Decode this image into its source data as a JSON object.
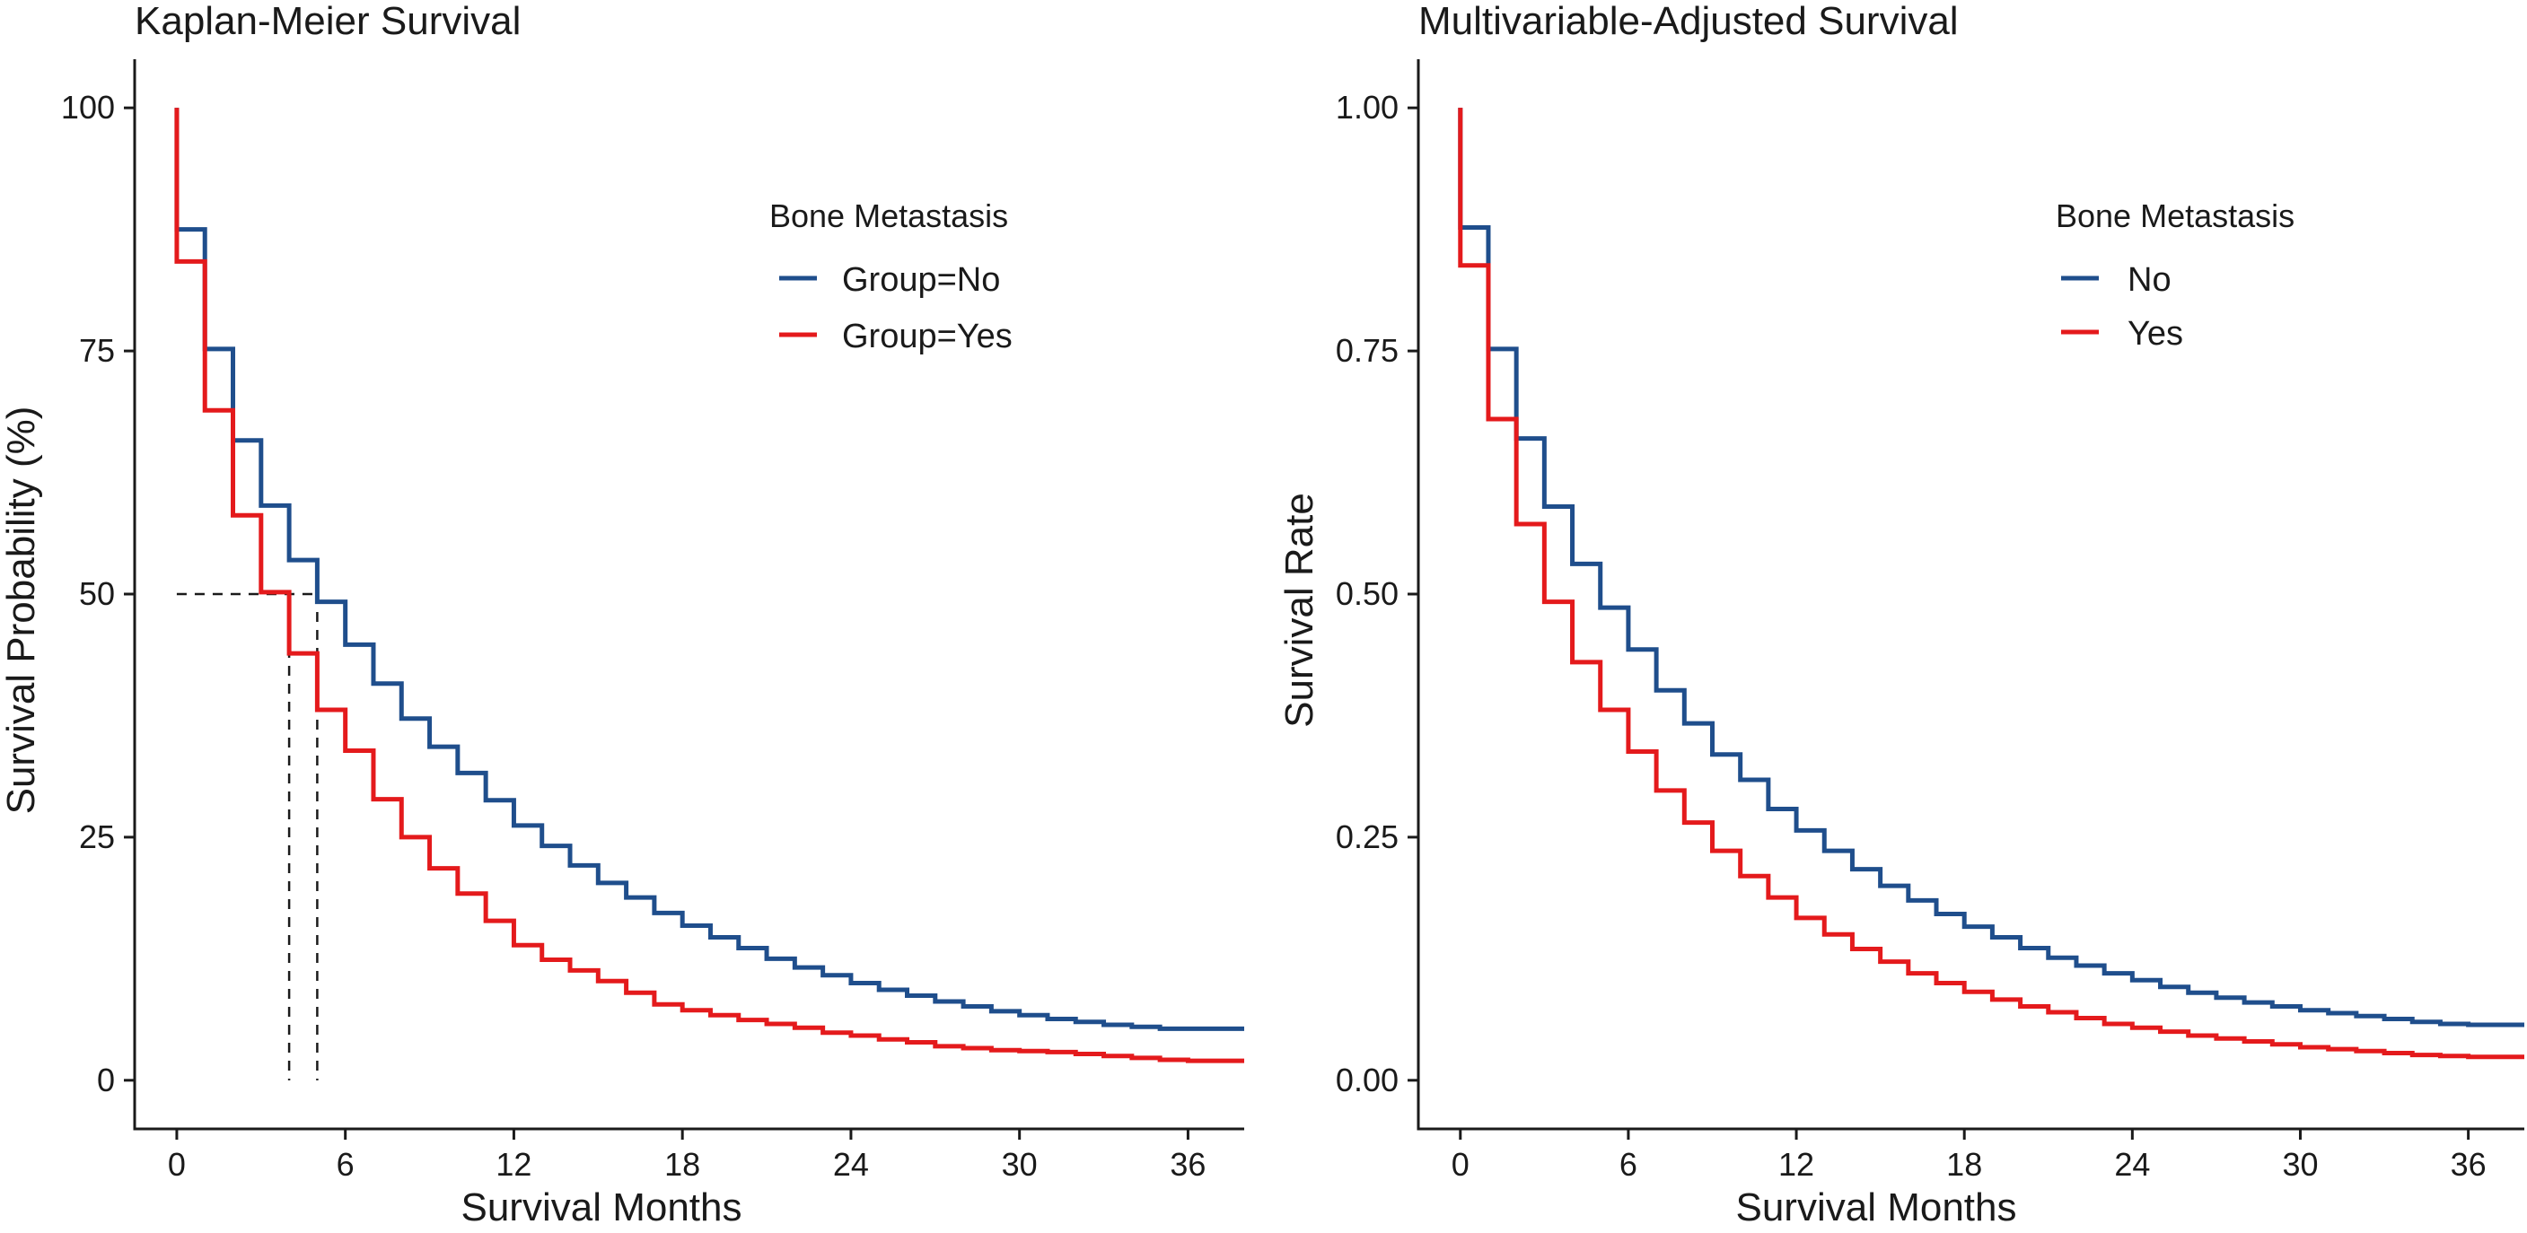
{
  "colors": {
    "no": "#1f4e8c",
    "yes": "#e41a1c",
    "axis": "#1a1a1a"
  },
  "chart_data": [
    {
      "type": "line",
      "title": "Kaplan-Meier Survival",
      "xlabel": "Survival Months",
      "ylabel": "Survival Probability (%)",
      "xlim": [
        -1.5,
        38
      ],
      "ylim": [
        -5,
        105
      ],
      "xticks": [
        0,
        6,
        12,
        18,
        24,
        30,
        36
      ],
      "yticks": [
        0,
        25,
        50,
        75,
        100
      ],
      "ytick_labels": [
        "0",
        "25",
        "50",
        "75",
        "100"
      ],
      "legend": {
        "title": "Bone Metastasis",
        "position": "top-right"
      },
      "x": [
        0,
        1,
        2,
        3,
        4,
        5,
        6,
        7,
        8,
        9,
        10,
        11,
        12,
        13,
        14,
        15,
        16,
        17,
        18,
        19,
        20,
        21,
        22,
        23,
        24,
        25,
        26,
        27,
        28,
        29,
        30,
        31,
        32,
        33,
        34,
        35,
        36,
        37,
        38
      ],
      "series": [
        {
          "name": "Group=No",
          "color_key": "no",
          "start": 100,
          "values": [
            87.5,
            75.2,
            65.8,
            59.1,
            53.5,
            49.2,
            44.8,
            40.8,
            37.2,
            34.3,
            31.6,
            28.8,
            26.2,
            24.1,
            22.1,
            20.3,
            18.8,
            17.2,
            15.9,
            14.7,
            13.6,
            12.5,
            11.6,
            10.8,
            10.0,
            9.3,
            8.7,
            8.1,
            7.6,
            7.1,
            6.7,
            6.3,
            6.0,
            5.7,
            5.5,
            5.3,
            5.3,
            5.3,
            5.3
          ]
        },
        {
          "name": "Group=Yes",
          "color_key": "yes",
          "start": 100,
          "values": [
            84.2,
            68.9,
            58.1,
            50.2,
            43.9,
            38.1,
            33.9,
            28.9,
            25.0,
            21.8,
            19.2,
            16.4,
            13.9,
            12.4,
            11.3,
            10.2,
            9.0,
            7.8,
            7.2,
            6.7,
            6.2,
            5.8,
            5.4,
            4.9,
            4.6,
            4.2,
            3.9,
            3.5,
            3.3,
            3.1,
            3.0,
            2.9,
            2.7,
            2.5,
            2.3,
            2.1,
            2.0,
            2.0,
            2.0
          ]
        }
      ],
      "median_reference": {
        "y": 50,
        "x_values": [
          4,
          5
        ]
      }
    },
    {
      "type": "line",
      "title": "Multivariable-Adjusted Survival",
      "xlabel": "Survival Months",
      "ylabel": "Survival Rate",
      "xlim": [
        -1.5,
        38
      ],
      "ylim": [
        -0.05,
        1.05
      ],
      "xticks": [
        0,
        6,
        12,
        18,
        24,
        30,
        36
      ],
      "yticks": [
        0,
        0.25,
        0.5,
        0.75,
        1.0
      ],
      "ytick_labels": [
        "0.00",
        "0.25",
        "0.50",
        "0.75",
        "1.00"
      ],
      "legend": {
        "title": "Bone Metastasis",
        "position": "top-right"
      },
      "x": [
        0,
        1,
        2,
        3,
        4,
        5,
        6,
        7,
        8,
        9,
        10,
        11,
        12,
        13,
        14,
        15,
        16,
        17,
        18,
        19,
        20,
        21,
        22,
        23,
        24,
        25,
        26,
        27,
        28,
        29,
        30,
        31,
        32,
        33,
        34,
        35,
        36,
        37,
        38
      ],
      "series": [
        {
          "name": "No",
          "color_key": "no",
          "start": 1.0,
          "values": [
            0.877,
            0.752,
            0.66,
            0.59,
            0.531,
            0.486,
            0.443,
            0.401,
            0.367,
            0.335,
            0.309,
            0.279,
            0.257,
            0.236,
            0.217,
            0.2,
            0.185,
            0.171,
            0.158,
            0.147,
            0.136,
            0.126,
            0.118,
            0.11,
            0.103,
            0.096,
            0.09,
            0.085,
            0.08,
            0.076,
            0.072,
            0.069,
            0.066,
            0.063,
            0.06,
            0.058,
            0.057,
            0.057,
            0.057
          ]
        },
        {
          "name": "Yes",
          "color_key": "yes",
          "start": 1.0,
          "values": [
            0.838,
            0.68,
            0.572,
            0.492,
            0.43,
            0.381,
            0.338,
            0.298,
            0.265,
            0.236,
            0.21,
            0.188,
            0.167,
            0.15,
            0.135,
            0.122,
            0.11,
            0.1,
            0.091,
            0.083,
            0.076,
            0.07,
            0.064,
            0.058,
            0.054,
            0.05,
            0.046,
            0.043,
            0.04,
            0.037,
            0.034,
            0.032,
            0.03,
            0.028,
            0.026,
            0.025,
            0.024,
            0.024,
            0.024
          ]
        }
      ]
    }
  ]
}
